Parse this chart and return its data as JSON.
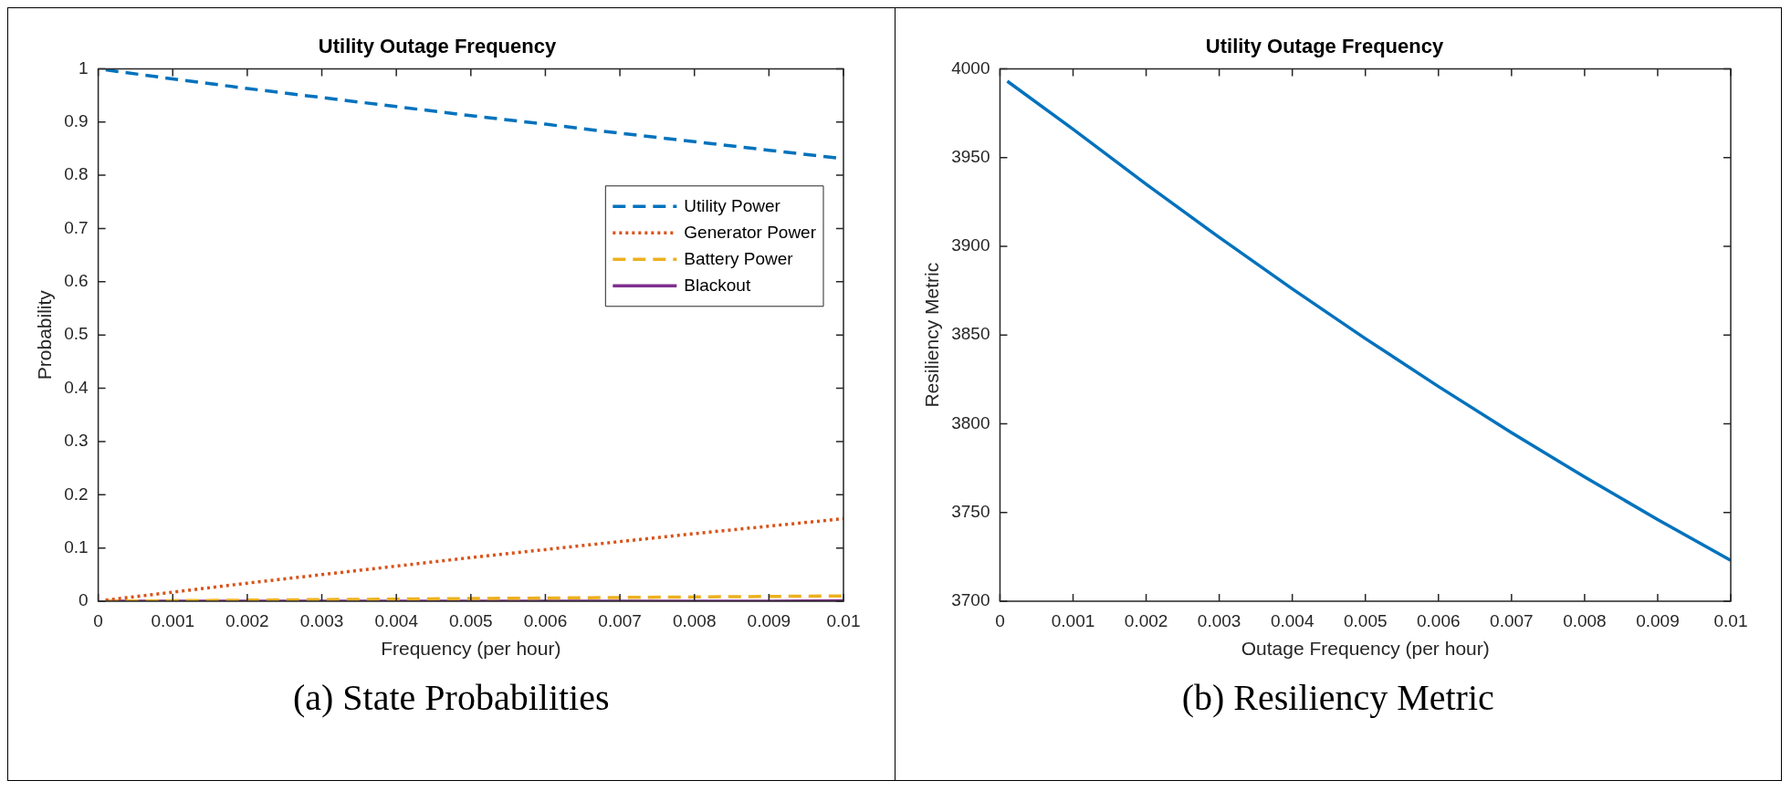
{
  "chart_data": [
    {
      "type": "line",
      "title": "Utility Outage Frequency",
      "xlabel": "Frequency (per hour)",
      "ylabel": "Probability",
      "xlim": [
        0,
        0.01
      ],
      "xticks": [
        0,
        0.001,
        0.002,
        0.003,
        0.004,
        0.005,
        0.006,
        0.007,
        0.008,
        0.009,
        0.01
      ],
      "ylim": [
        0,
        1
      ],
      "yticks": [
        0,
        0.1,
        0.2,
        0.3,
        0.4,
        0.5,
        0.6,
        0.7,
        0.8,
        0.9,
        1
      ],
      "grid": false,
      "marker": "none",
      "legend": "top right",
      "annotations": [
        "(a) State Probabilities"
      ],
      "x": [
        0.0001,
        0.001,
        0.002,
        0.003,
        0.004,
        0.005,
        0.006,
        0.007,
        0.008,
        0.009,
        0.01
      ],
      "series": [
        {
          "name": "Utility Power",
          "color": "#0072bd",
          "line_style": "dashed",
          "values": [
            0.998,
            0.981,
            0.963,
            0.946,
            0.929,
            0.912,
            0.896,
            0.879,
            0.863,
            0.847,
            0.831
          ]
        },
        {
          "name": "Generator Power",
          "color": "#d95319",
          "line_style": "dotted",
          "values": [
            0.002,
            0.017,
            0.034,
            0.05,
            0.066,
            0.082,
            0.097,
            0.112,
            0.127,
            0.141,
            0.155
          ]
        },
        {
          "name": "Battery Power",
          "color": "#edb120",
          "line_style": "dashed",
          "values": [
            0,
            0.001,
            0.002,
            0.003,
            0.004,
            0.005,
            0.006,
            0.007,
            0.008,
            0.009,
            0.01
          ]
        },
        {
          "name": "Blackout",
          "color": "#7e2f8e",
          "line_style": "solid",
          "values": [
            0,
            0,
            0,
            0,
            0,
            0,
            0,
            0,
            0,
            0,
            0.001
          ]
        }
      ]
    },
    {
      "type": "line",
      "title": "Utility Outage Frequency",
      "xlabel": "Outage Frequency (per hour)",
      "ylabel": "Resiliency Metric",
      "xlim": [
        0,
        0.01
      ],
      "xticks": [
        0,
        0.001,
        0.002,
        0.003,
        0.004,
        0.005,
        0.006,
        0.007,
        0.008,
        0.009,
        0.01
      ],
      "ylim": [
        3700,
        4000
      ],
      "yticks": [
        3700,
        3750,
        3800,
        3850,
        3900,
        3950,
        4000
      ],
      "grid": false,
      "marker": "none",
      "annotations": [
        "(b) Resiliency Metric"
      ],
      "x": [
        0.0001,
        0.001,
        0.002,
        0.003,
        0.004,
        0.005,
        0.006,
        0.007,
        0.008,
        0.009,
        0.01
      ],
      "series": [
        {
          "color": "#0072bd",
          "line_style": "solid",
          "values": [
            3993,
            3966,
            3935,
            3905,
            3876,
            3848,
            3821,
            3795,
            3770,
            3746,
            3723
          ]
        }
      ]
    }
  ]
}
